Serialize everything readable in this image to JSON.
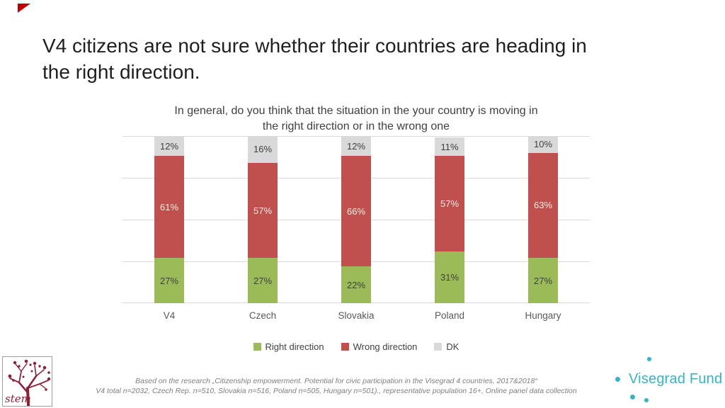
{
  "slide": {
    "title_lines": [
      "V4 citizens are not sure whether their countries are heading in",
      "the right direction."
    ],
    "accent_color": "#c00000"
  },
  "chart_data": {
    "type": "bar",
    "stacked": true,
    "unit": "%",
    "title_lines": [
      "In general, do you think that the situation in the your country is moving in",
      "the right direction or in the wrong one"
    ],
    "categories": [
      "V4",
      "Czech",
      "Slovakia",
      "Poland",
      "Hungary"
    ],
    "series": [
      {
        "name": "Right direction",
        "color": "#9bbb59",
        "label_color": "#404040",
        "values": [
          27,
          27,
          22,
          31,
          27
        ]
      },
      {
        "name": "Wrong direction",
        "color": "#c0504d",
        "label_color": "#f4f0e7",
        "values": [
          61,
          57,
          66,
          57,
          63
        ]
      },
      {
        "name": "DK",
        "color": "#d9d9d9",
        "label_color": "#404040",
        "values": [
          12,
          16,
          12,
          11,
          10
        ]
      }
    ],
    "ylim": [
      0,
      100
    ],
    "gridline_step": 25,
    "grid": true,
    "legend_position": "bottom",
    "y_axis_labels_shown": false
  },
  "footer": {
    "line1": "Based on the research „Citizenship empowerment. Potential for civic participation in the Visegrad 4 countries, 2017&2018“",
    "line2": "V4 total n=2032, Czech Rep. n=510, Slovakia n=516, Poland n=505, Hungary n=501)., representative population 16+, Online panel data collection"
  },
  "logos": {
    "stem_text": "stem",
    "stem_color": "#8e2038",
    "visegrad_text": "Visegrad Fund",
    "visegrad_color": "#35b4c6"
  }
}
